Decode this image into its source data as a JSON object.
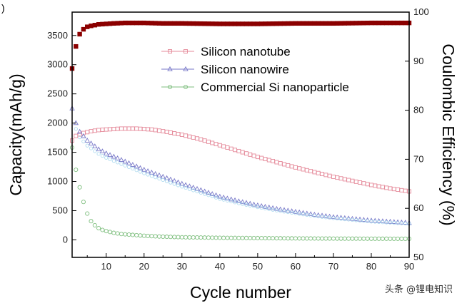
{
  "chart_data": {
    "type": "line",
    "panel_mark": ")",
    "xlabel": "Cycle number",
    "ylabel_left": "Capacity(mAh/g)",
    "ylabel_right": "Coulombic Efficiency (%)",
    "xlim": [
      1,
      90
    ],
    "ylim_left": [
      -300,
      3900
    ],
    "ylim_right": [
      50,
      100
    ],
    "x_ticks": [
      10,
      20,
      30,
      40,
      50,
      60,
      70,
      80,
      90
    ],
    "y_ticks_left": [
      0,
      500,
      1000,
      1500,
      2000,
      2500,
      3000,
      3500
    ],
    "y_ticks_right": [
      50,
      60,
      70,
      80,
      90,
      100
    ],
    "legend_position": "top-center",
    "grid": false,
    "series": [
      {
        "name": "Silicon nanotube",
        "axis": "left",
        "marker": "square",
        "color": "#e58a9a",
        "x": [
          1,
          2,
          4,
          6,
          8,
          10,
          14,
          18,
          22,
          26,
          30,
          35,
          40,
          45,
          50,
          55,
          60,
          65,
          70,
          75,
          80,
          85,
          90
        ],
        "values": [
          1700,
          1780,
          1830,
          1860,
          1880,
          1890,
          1905,
          1905,
          1890,
          1850,
          1800,
          1720,
          1620,
          1520,
          1420,
          1330,
          1240,
          1160,
          1080,
          1010,
          940,
          880,
          830
        ]
      },
      {
        "name": "Silicon nanowire",
        "axis": "left",
        "marker": "triangle",
        "color": "#7777c8",
        "x": [
          1,
          2,
          3,
          5,
          8,
          10,
          15,
          20,
          25,
          30,
          35,
          40,
          45,
          50,
          55,
          60,
          65,
          70,
          75,
          80,
          85,
          90
        ],
        "values": [
          2250,
          2000,
          1850,
          1700,
          1550,
          1480,
          1340,
          1200,
          1080,
          960,
          850,
          740,
          660,
          590,
          530,
          480,
          430,
          390,
          360,
          330,
          310,
          290
        ]
      },
      {
        "name": "Commercial Si nanoparticle",
        "axis": "left",
        "marker": "circle",
        "color": "#7fbf7f",
        "x": [
          1,
          2,
          3,
          4,
          5,
          6,
          7,
          8,
          9,
          10,
          12,
          14,
          16,
          18,
          20,
          25,
          30,
          40,
          50,
          60,
          70,
          80,
          90
        ],
        "values": [
          1580,
          1200,
          900,
          650,
          450,
          320,
          250,
          200,
          170,
          150,
          120,
          100,
          90,
          80,
          70,
          55,
          45,
          35,
          30,
          25,
          22,
          20,
          18
        ]
      },
      {
        "name": "",
        "axis": "right",
        "marker": "filled-square",
        "color": "#8b0000",
        "x": [
          1,
          2,
          3,
          4,
          5,
          6,
          8,
          10,
          12,
          15,
          20,
          25,
          30,
          40,
          50,
          60,
          70,
          80,
          90
        ],
        "values": [
          88.5,
          93,
          95.5,
          96.5,
          97,
          97.2,
          97.5,
          97.6,
          97.7,
          97.8,
          97.8,
          97.7,
          97.7,
          97.6,
          97.6,
          97.7,
          97.7,
          97.8,
          97.8
        ]
      }
    ]
  },
  "watermark": "头条 @锂电知识"
}
